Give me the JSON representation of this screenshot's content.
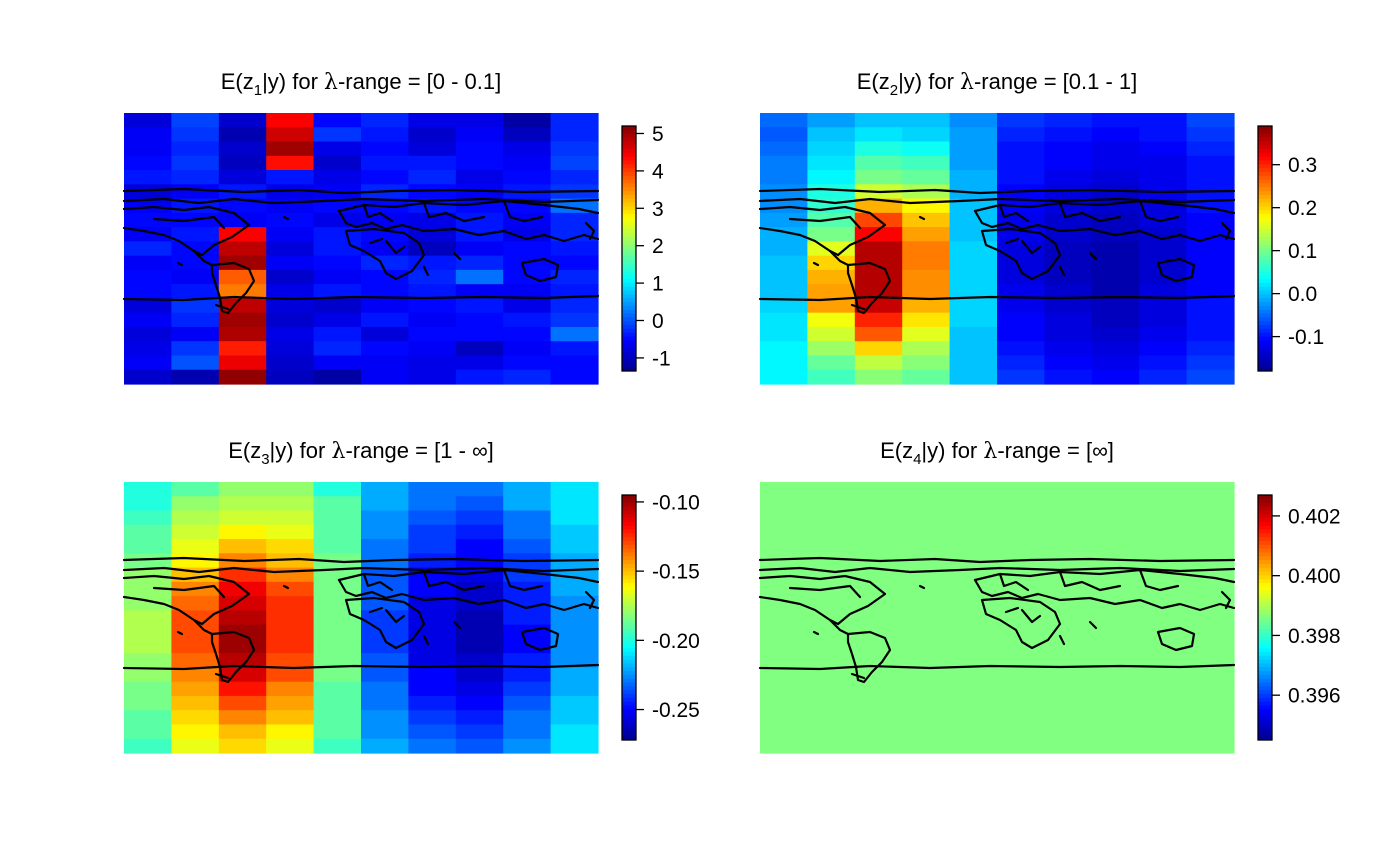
{
  "palette": [
    "#00008F",
    "#0000FF",
    "#0080FF",
    "#00FFFF",
    "#80FF80",
    "#FFFF00",
    "#FF8000",
    "#FF0000",
    "#800000"
  ],
  "outline_color": "#000000",
  "chart_data": [
    {
      "type": "heatmap",
      "title_parts": [
        "E(z",
        "1",
        "|y) for ",
        "λ",
        "-range = [0 - 0.1]"
      ],
      "zlim": [
        -1.35,
        5.2
      ],
      "colorbar_ticks": [
        5,
        4,
        3,
        2,
        1,
        0,
        -1
      ],
      "colorbar_tick_labels": [
        "5",
        "4",
        "3",
        "2",
        "1",
        "0",
        "-1"
      ],
      "values": [
        [
          -0.8,
          -0.1,
          -0.9,
          4.4,
          -0.5,
          -0.3,
          -0.7,
          -0.7,
          -1.2,
          -0.3
        ],
        [
          -0.6,
          -0.2,
          -1.1,
          4.7,
          -0.2,
          -0.4,
          -0.9,
          -0.6,
          -1.0,
          -0.3
        ],
        [
          -0.6,
          -0.3,
          -0.9,
          5.0,
          -0.7,
          -0.5,
          -0.8,
          -0.5,
          -0.7,
          -0.2
        ],
        [
          -0.5,
          -0.2,
          -1.0,
          4.3,
          -0.9,
          -0.4,
          -0.4,
          -0.5,
          -0.6,
          -0.1
        ],
        [
          -0.4,
          -0.3,
          -0.8,
          -0.4,
          -0.7,
          -0.5,
          -0.3,
          -0.7,
          -0.5,
          -0.3
        ],
        [
          -0.8,
          -0.6,
          -0.4,
          -0.7,
          -0.6,
          -0.3,
          -0.5,
          -0.6,
          -0.4,
          -0.2
        ],
        [
          -0.6,
          -0.4,
          -0.5,
          -0.6,
          -0.5,
          -0.5,
          -0.4,
          -0.5,
          -0.5,
          0.2
        ],
        [
          -0.5,
          -0.5,
          -0.6,
          -0.5,
          -0.7,
          -0.6,
          -0.7,
          -0.4,
          -0.6,
          -0.3
        ],
        [
          -0.6,
          -0.4,
          4.4,
          -0.6,
          -0.4,
          -0.5,
          -0.8,
          -0.4,
          -0.7,
          -0.3
        ],
        [
          -0.3,
          -0.5,
          4.8,
          -0.8,
          -0.4,
          -0.6,
          -1.0,
          -0.6,
          -0.5,
          -0.4
        ],
        [
          -0.6,
          -0.5,
          5.0,
          -0.6,
          -0.5,
          -0.3,
          -0.4,
          -0.3,
          -0.5,
          -0.5
        ],
        [
          -0.5,
          -0.6,
          3.8,
          -0.9,
          -0.6,
          -0.5,
          -0.3,
          0.2,
          -0.5,
          -0.3
        ],
        [
          -0.5,
          -0.4,
          3.6,
          -0.7,
          -0.4,
          -0.5,
          -0.4,
          -0.6,
          -0.6,
          -0.4
        ],
        [
          -0.8,
          -0.2,
          4.8,
          -0.8,
          -0.9,
          -0.6,
          -0.5,
          -0.4,
          -0.7,
          -0.3
        ],
        [
          -0.6,
          -0.3,
          5.0,
          -0.9,
          -0.7,
          -0.4,
          -0.6,
          -0.5,
          -0.4,
          -0.2
        ],
        [
          -0.8,
          -0.6,
          4.9,
          -0.7,
          -0.4,
          -0.8,
          -0.5,
          -0.5,
          -0.5,
          0.2
        ],
        [
          -0.7,
          -0.2,
          4.2,
          -0.8,
          -0.3,
          -0.5,
          -0.6,
          -1.0,
          -0.6,
          -0.4
        ],
        [
          -0.6,
          0.0,
          4.5,
          -0.9,
          -0.6,
          -0.6,
          -0.7,
          -0.7,
          -0.5,
          -0.5
        ],
        [
          -0.9,
          -1.1,
          5.1,
          -1.0,
          -1.2,
          -0.6,
          -0.7,
          -0.4,
          -0.3,
          -0.5
        ]
      ]
    },
    {
      "type": "heatmap",
      "title_parts": [
        "E(z",
        "2",
        "|y) for ",
        "λ",
        "-range = [0.1 - 1]"
      ],
      "zlim": [
        -0.18,
        0.39
      ],
      "colorbar_ticks": [
        0.3,
        0.2,
        0.1,
        0.0,
        -0.1
      ],
      "colorbar_tick_labels": [
        "0.3",
        "0.2",
        "0.1",
        "0.0",
        "-0.1"
      ],
      "values": [
        [
          -0.05,
          -0.02,
          0.0,
          0.0,
          -0.03,
          -0.08,
          -0.09,
          -0.1,
          -0.1,
          -0.07
        ],
        [
          -0.06,
          0.0,
          0.02,
          0.01,
          -0.02,
          -0.09,
          -0.1,
          -0.11,
          -0.1,
          -0.08
        ],
        [
          -0.05,
          0.01,
          0.05,
          0.04,
          -0.02,
          -0.1,
          -0.11,
          -0.12,
          -0.11,
          -0.09
        ],
        [
          -0.04,
          0.02,
          0.08,
          0.07,
          -0.02,
          -0.1,
          -0.11,
          -0.12,
          -0.12,
          -0.1
        ],
        [
          -0.04,
          0.03,
          0.1,
          0.09,
          -0.01,
          -0.1,
          -0.12,
          -0.13,
          -0.12,
          -0.1
        ],
        [
          -0.03,
          0.05,
          0.15,
          0.13,
          -0.01,
          -0.11,
          -0.13,
          -0.14,
          -0.12,
          -0.1
        ],
        [
          -0.03,
          0.06,
          0.22,
          0.18,
          0.0,
          -0.11,
          -0.13,
          -0.14,
          -0.13,
          -0.1
        ],
        [
          -0.02,
          0.08,
          0.28,
          0.21,
          0.0,
          -0.12,
          -0.14,
          -0.15,
          -0.13,
          -0.11
        ],
        [
          -0.01,
          0.1,
          0.32,
          0.23,
          0.0,
          -0.12,
          -0.14,
          -0.15,
          -0.14,
          -0.11
        ],
        [
          -0.01,
          0.16,
          0.36,
          0.25,
          0.01,
          -0.13,
          -0.15,
          -0.16,
          -0.14,
          -0.11
        ],
        [
          0.0,
          0.2,
          0.36,
          0.25,
          0.01,
          -0.13,
          -0.15,
          -0.16,
          -0.14,
          -0.11
        ],
        [
          0.0,
          0.22,
          0.36,
          0.24,
          0.01,
          -0.13,
          -0.15,
          -0.16,
          -0.14,
          -0.11
        ],
        [
          0.0,
          0.23,
          0.36,
          0.24,
          0.01,
          -0.12,
          -0.14,
          -0.16,
          -0.13,
          -0.11
        ],
        [
          0.01,
          0.23,
          0.35,
          0.22,
          0.01,
          -0.12,
          -0.14,
          -0.15,
          -0.13,
          -0.1
        ],
        [
          0.02,
          0.17,
          0.3,
          0.19,
          0.01,
          -0.11,
          -0.13,
          -0.15,
          -0.13,
          -0.1
        ],
        [
          0.02,
          0.15,
          0.27,
          0.16,
          0.0,
          -0.11,
          -0.13,
          -0.14,
          -0.12,
          -0.1
        ],
        [
          0.03,
          0.12,
          0.2,
          0.13,
          0.0,
          -0.1,
          -0.12,
          -0.13,
          -0.11,
          -0.09
        ],
        [
          0.03,
          0.09,
          0.14,
          0.11,
          0.0,
          -0.09,
          -0.11,
          -0.12,
          -0.1,
          -0.08
        ],
        [
          0.03,
          0.07,
          0.11,
          0.09,
          0.0,
          -0.08,
          -0.1,
          -0.11,
          -0.09,
          -0.07
        ]
      ]
    },
    {
      "type": "heatmap",
      "title_parts": [
        "E(z",
        "3",
        "|y) for ",
        "λ",
        "-range = [1 - ∞]"
      ],
      "zlim": [
        -0.272,
        -0.095
      ],
      "colorbar_ticks": [
        -0.1,
        -0.15,
        -0.2,
        -0.25
      ],
      "colorbar_tick_labels": [
        "-0.10",
        "-0.15",
        "-0.20",
        "-0.25"
      ],
      "values": [
        [
          -0.2,
          -0.19,
          -0.18,
          -0.18,
          -0.2,
          -0.22,
          -0.23,
          -0.23,
          -0.22,
          -0.21
        ],
        [
          -0.2,
          -0.18,
          -0.175,
          -0.175,
          -0.19,
          -0.22,
          -0.23,
          -0.235,
          -0.22,
          -0.21
        ],
        [
          -0.195,
          -0.175,
          -0.17,
          -0.17,
          -0.19,
          -0.225,
          -0.235,
          -0.24,
          -0.23,
          -0.21
        ],
        [
          -0.19,
          -0.17,
          -0.16,
          -0.165,
          -0.19,
          -0.225,
          -0.24,
          -0.245,
          -0.23,
          -0.215
        ],
        [
          -0.19,
          -0.165,
          -0.15,
          -0.155,
          -0.19,
          -0.23,
          -0.24,
          -0.25,
          -0.235,
          -0.215
        ],
        [
          -0.185,
          -0.16,
          -0.14,
          -0.15,
          -0.185,
          -0.23,
          -0.245,
          -0.25,
          -0.24,
          -0.22
        ],
        [
          -0.18,
          -0.15,
          -0.125,
          -0.14,
          -0.185,
          -0.235,
          -0.25,
          -0.255,
          -0.24,
          -0.22
        ],
        [
          -0.18,
          -0.14,
          -0.115,
          -0.13,
          -0.185,
          -0.235,
          -0.25,
          -0.26,
          -0.245,
          -0.22
        ],
        [
          -0.18,
          -0.135,
          -0.11,
          -0.125,
          -0.185,
          -0.235,
          -0.255,
          -0.26,
          -0.245,
          -0.225
        ],
        [
          -0.175,
          -0.13,
          -0.105,
          -0.125,
          -0.185,
          -0.24,
          -0.255,
          -0.265,
          -0.245,
          -0.225
        ],
        [
          -0.175,
          -0.13,
          -0.1,
          -0.125,
          -0.185,
          -0.24,
          -0.255,
          -0.265,
          -0.25,
          -0.225
        ],
        [
          -0.175,
          -0.13,
          -0.1,
          -0.125,
          -0.185,
          -0.24,
          -0.255,
          -0.265,
          -0.25,
          -0.225
        ],
        [
          -0.18,
          -0.135,
          -0.105,
          -0.13,
          -0.185,
          -0.235,
          -0.255,
          -0.26,
          -0.245,
          -0.225
        ],
        [
          -0.18,
          -0.14,
          -0.11,
          -0.13,
          -0.185,
          -0.235,
          -0.25,
          -0.26,
          -0.245,
          -0.22
        ],
        [
          -0.185,
          -0.145,
          -0.12,
          -0.14,
          -0.19,
          -0.23,
          -0.25,
          -0.255,
          -0.24,
          -0.22
        ],
        [
          -0.185,
          -0.15,
          -0.13,
          -0.145,
          -0.19,
          -0.23,
          -0.245,
          -0.25,
          -0.235,
          -0.215
        ],
        [
          -0.19,
          -0.155,
          -0.14,
          -0.15,
          -0.19,
          -0.225,
          -0.24,
          -0.245,
          -0.23,
          -0.215
        ],
        [
          -0.19,
          -0.16,
          -0.15,
          -0.16,
          -0.19,
          -0.225,
          -0.235,
          -0.24,
          -0.23,
          -0.21
        ],
        [
          -0.195,
          -0.165,
          -0.155,
          -0.165,
          -0.195,
          -0.22,
          -0.23,
          -0.235,
          -0.225,
          -0.21
        ]
      ]
    },
    {
      "type": "heatmap",
      "title_parts": [
        "E(z",
        "4",
        "|y) for ",
        "λ",
        "-range = [∞]"
      ],
      "zlim": [
        0.3945,
        0.4027
      ],
      "colorbar_ticks": [
        0.402,
        0.4,
        0.398,
        0.396
      ],
      "colorbar_tick_labels": [
        "0.402",
        "0.400",
        "0.398",
        "0.396"
      ],
      "constant_value": 0.3986
    }
  ]
}
